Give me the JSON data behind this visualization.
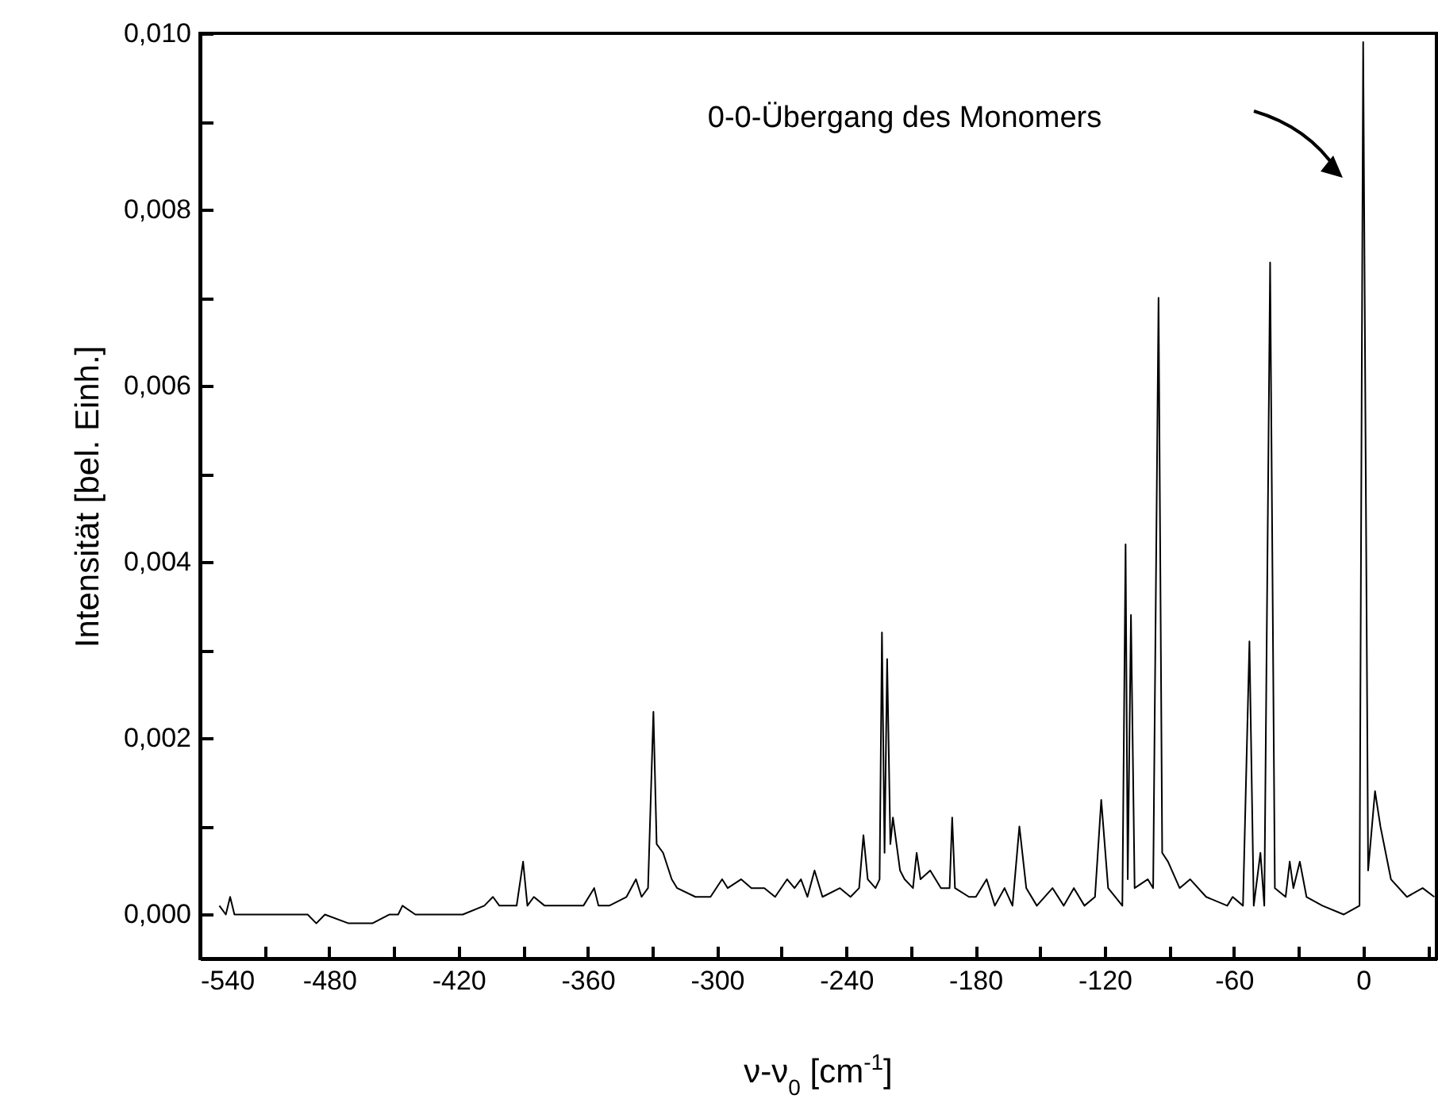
{
  "chart_data": {
    "type": "line",
    "xlabel": "ν-ν$_{0}$ [cm$^{-1}$]",
    "ylabel": "Intensität [bel. Einh.]",
    "xlim": [
      -540,
      34
    ],
    "ylim": [
      -0.0005,
      0.01
    ],
    "xticks": [
      -540,
      {
        "value": -510,
        "label": null
      },
      -480,
      {
        "value": -450,
        "label": null
      },
      -420,
      {
        "value": -390,
        "label": null
      },
      -360,
      {
        "value": -330,
        "label": null
      },
      -300,
      {
        "value": -270,
        "label": null
      },
      -240,
      {
        "value": -210,
        "label": null
      },
      -180,
      {
        "value": -150,
        "label": null
      },
      -120,
      {
        "value": -90,
        "label": null
      },
      -60,
      {
        "value": -30,
        "label": null
      },
      0,
      {
        "value": 30,
        "label": null
      }
    ],
    "yticks": [
      {
        "value": 0,
        "label": "0,000"
      },
      {
        "value": 0.001,
        "label": null
      },
      {
        "value": 0.002,
        "label": "0,002"
      },
      {
        "value": 0.003,
        "label": null
      },
      {
        "value": 0.004,
        "label": "0,004"
      },
      {
        "value": 0.005,
        "label": null
      },
      {
        "value": 0.006,
        "label": "0,006"
      },
      {
        "value": 0.007,
        "label": null
      },
      {
        "value": 0.008,
        "label": "0,008"
      },
      {
        "value": 0.009,
        "label": null
      },
      {
        "value": 0.01,
        "label": "0,010"
      }
    ],
    "grid": false,
    "annotations": [
      "0-0-Übergang des Monomers"
    ],
    "series": [
      {
        "color": "#000000",
        "x": [
          -531,
          -528,
          -526,
          -524,
          -510,
          -500,
          -490,
          -486,
          -482,
          -471,
          -460,
          -452,
          -448,
          -446,
          -440,
          -425,
          -418,
          -408,
          -404,
          -401,
          -393,
          -390,
          -388,
          -385,
          -380,
          -370,
          -362,
          -357,
          -355,
          -350,
          -342,
          -337.6,
          -335,
          -332,
          -329.5,
          -328,
          -325,
          -321,
          -318.5,
          -310,
          -303,
          -297.6,
          -295,
          -288.8,
          -284,
          -278,
          -273,
          -267.4,
          -264,
          -261,
          -258,
          -254.7,
          -251,
          -242.9,
          -238,
          -234,
          -232,
          -230,
          -226.4,
          -224.5,
          -223.4,
          -222.2,
          -221,
          -219.5,
          -218.3,
          -215,
          -212.9,
          -209,
          -207.3,
          -205.5,
          -201,
          -196,
          -192,
          -190.8,
          -189.5,
          -183,
          -179.8,
          -174.8,
          -171,
          -166.5,
          -162.8,
          -159.6,
          -156.4,
          -151.5,
          -144.2,
          -139,
          -134.3,
          -129.4,
          -124.5,
          -121.6,
          -118.4,
          -111.8,
          -110.3,
          -109.3,
          -107.8,
          -106.1,
          -100,
          -97.5,
          -95,
          -93.3,
          -90.6,
          -85.2,
          -80.3,
          -72.9,
          -63.1,
          -60.6,
          -55.8,
          -52.8,
          -50.8,
          -47.7,
          -45.9,
          -43.2,
          -41,
          -36,
          -34.1,
          -32.4,
          -29.4,
          -26.3,
          -18.9,
          -9,
          -1.7,
          0,
          2.3,
          5.5,
          8,
          12.9,
          20.3,
          27.6,
          33
        ],
        "values": [
          0.0001,
          0,
          0.0002,
          0,
          0,
          0,
          0,
          -0.0001,
          0,
          -0.0001,
          -0.0001,
          0,
          0,
          0.0001,
          0,
          0,
          0,
          0.0001,
          0.0002,
          0.0001,
          0.0001,
          0.0006,
          0.0001,
          0.0002,
          0.0001,
          0.0001,
          0.0001,
          0.0003,
          0.0001,
          0.0001,
          0.0002,
          0.0004,
          0.0002,
          0.0003,
          0.0023,
          0.0008,
          0.0007,
          0.0004,
          0.0003,
          0.0002,
          0.0002,
          0.0004,
          0.0003,
          0.0004,
          0.0003,
          0.0003,
          0.0002,
          0.0004,
          0.0003,
          0.0004,
          0.0002,
          0.0005,
          0.0002,
          0.0003,
          0.0002,
          0.0003,
          0.0009,
          0.0004,
          0.0003,
          0.0004,
          0.0032,
          0.0007,
          0.0029,
          0.0008,
          0.0011,
          0.0005,
          0.0004,
          0.0003,
          0.0007,
          0.0004,
          0.0005,
          0.0003,
          0.0003,
          0.0011,
          0.0003,
          0.0002,
          0.0002,
          0.0004,
          0.0001,
          0.0003,
          0.0001,
          0.001,
          0.0003,
          0.0001,
          0.0003,
          0.0001,
          0.0003,
          0.0001,
          0.0002,
          0.0013,
          0.0003,
          0.0001,
          0.0042,
          0.0004,
          0.0034,
          0.0003,
          0.0004,
          0.0003,
          0.007,
          0.0007,
          0.0006,
          0.0003,
          0.0004,
          0.0002,
          0.0001,
          0.0002,
          0.0001,
          0.0031,
          0.0001,
          0.0007,
          0.0001,
          0.0074,
          0.0003,
          0.0002,
          0.0006,
          0.0003,
          0.0006,
          0.0002,
          0.0001,
          0,
          0.0001,
          0.0099,
          0.0005,
          0.0014,
          0.001,
          0.0004,
          0.0002,
          0.0003,
          0.0002
        ]
      }
    ]
  }
}
